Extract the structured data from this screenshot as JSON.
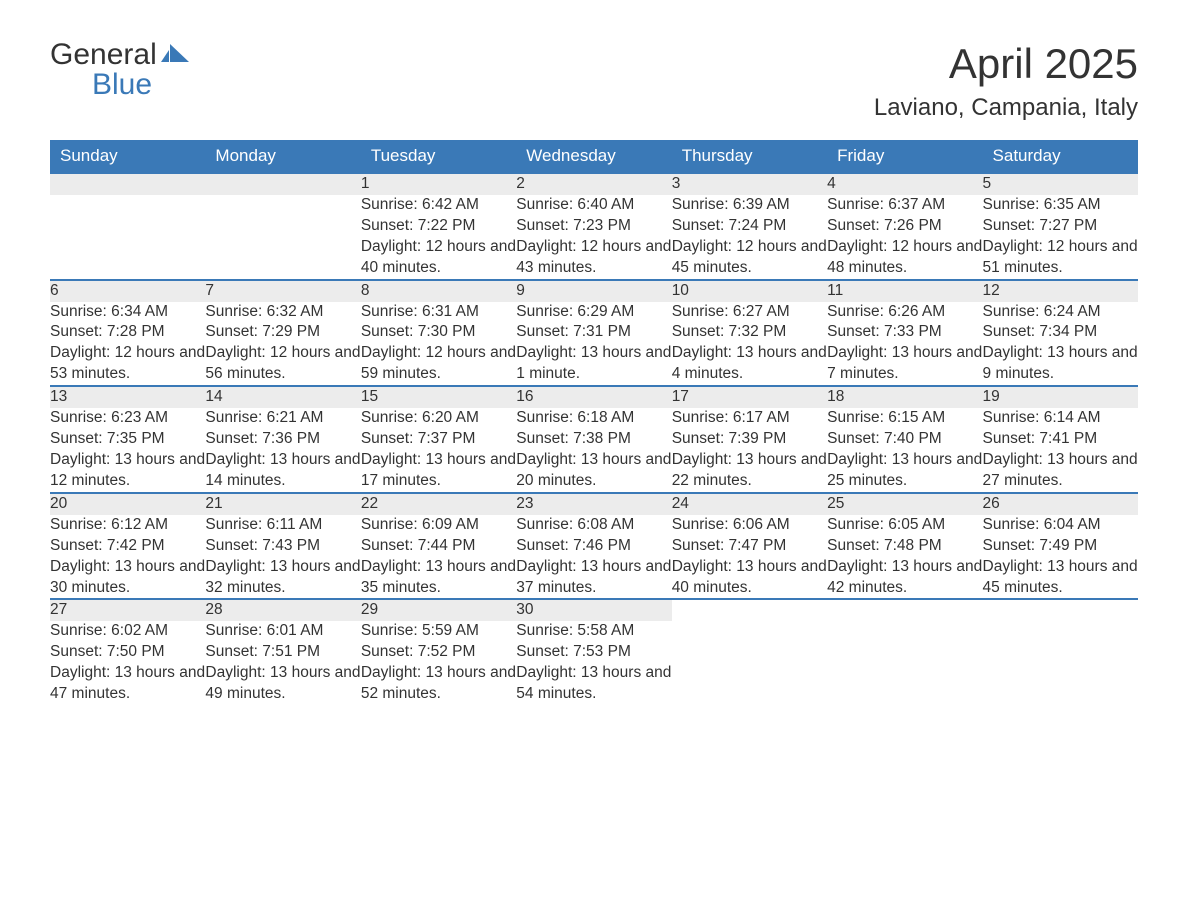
{
  "brand": {
    "word1": "General",
    "word2": "Blue",
    "accent_color": "#3a79b7"
  },
  "title": {
    "month": "April 2025",
    "location": "Laviano, Campania, Italy"
  },
  "calendar": {
    "header_bg": "#3a79b7",
    "header_fg": "#ffffff",
    "daynum_bg": "#ececec",
    "row_border": "#3a79b7",
    "text_color": "#333333",
    "days": [
      "Sunday",
      "Monday",
      "Tuesday",
      "Wednesday",
      "Thursday",
      "Friday",
      "Saturday"
    ],
    "weeks": [
      [
        null,
        null,
        {
          "n": "1",
          "sr": "Sunrise: 6:42 AM",
          "ss": "Sunset: 7:22 PM",
          "dl": "Daylight: 12 hours and 40 minutes."
        },
        {
          "n": "2",
          "sr": "Sunrise: 6:40 AM",
          "ss": "Sunset: 7:23 PM",
          "dl": "Daylight: 12 hours and 43 minutes."
        },
        {
          "n": "3",
          "sr": "Sunrise: 6:39 AM",
          "ss": "Sunset: 7:24 PM",
          "dl": "Daylight: 12 hours and 45 minutes."
        },
        {
          "n": "4",
          "sr": "Sunrise: 6:37 AM",
          "ss": "Sunset: 7:26 PM",
          "dl": "Daylight: 12 hours and 48 minutes."
        },
        {
          "n": "5",
          "sr": "Sunrise: 6:35 AM",
          "ss": "Sunset: 7:27 PM",
          "dl": "Daylight: 12 hours and 51 minutes."
        }
      ],
      [
        {
          "n": "6",
          "sr": "Sunrise: 6:34 AM",
          "ss": "Sunset: 7:28 PM",
          "dl": "Daylight: 12 hours and 53 minutes."
        },
        {
          "n": "7",
          "sr": "Sunrise: 6:32 AM",
          "ss": "Sunset: 7:29 PM",
          "dl": "Daylight: 12 hours and 56 minutes."
        },
        {
          "n": "8",
          "sr": "Sunrise: 6:31 AM",
          "ss": "Sunset: 7:30 PM",
          "dl": "Daylight: 12 hours and 59 minutes."
        },
        {
          "n": "9",
          "sr": "Sunrise: 6:29 AM",
          "ss": "Sunset: 7:31 PM",
          "dl": "Daylight: 13 hours and 1 minute."
        },
        {
          "n": "10",
          "sr": "Sunrise: 6:27 AM",
          "ss": "Sunset: 7:32 PM",
          "dl": "Daylight: 13 hours and 4 minutes."
        },
        {
          "n": "11",
          "sr": "Sunrise: 6:26 AM",
          "ss": "Sunset: 7:33 PM",
          "dl": "Daylight: 13 hours and 7 minutes."
        },
        {
          "n": "12",
          "sr": "Sunrise: 6:24 AM",
          "ss": "Sunset: 7:34 PM",
          "dl": "Daylight: 13 hours and 9 minutes."
        }
      ],
      [
        {
          "n": "13",
          "sr": "Sunrise: 6:23 AM",
          "ss": "Sunset: 7:35 PM",
          "dl": "Daylight: 13 hours and 12 minutes."
        },
        {
          "n": "14",
          "sr": "Sunrise: 6:21 AM",
          "ss": "Sunset: 7:36 PM",
          "dl": "Daylight: 13 hours and 14 minutes."
        },
        {
          "n": "15",
          "sr": "Sunrise: 6:20 AM",
          "ss": "Sunset: 7:37 PM",
          "dl": "Daylight: 13 hours and 17 minutes."
        },
        {
          "n": "16",
          "sr": "Sunrise: 6:18 AM",
          "ss": "Sunset: 7:38 PM",
          "dl": "Daylight: 13 hours and 20 minutes."
        },
        {
          "n": "17",
          "sr": "Sunrise: 6:17 AM",
          "ss": "Sunset: 7:39 PM",
          "dl": "Daylight: 13 hours and 22 minutes."
        },
        {
          "n": "18",
          "sr": "Sunrise: 6:15 AM",
          "ss": "Sunset: 7:40 PM",
          "dl": "Daylight: 13 hours and 25 minutes."
        },
        {
          "n": "19",
          "sr": "Sunrise: 6:14 AM",
          "ss": "Sunset: 7:41 PM",
          "dl": "Daylight: 13 hours and 27 minutes."
        }
      ],
      [
        {
          "n": "20",
          "sr": "Sunrise: 6:12 AM",
          "ss": "Sunset: 7:42 PM",
          "dl": "Daylight: 13 hours and 30 minutes."
        },
        {
          "n": "21",
          "sr": "Sunrise: 6:11 AM",
          "ss": "Sunset: 7:43 PM",
          "dl": "Daylight: 13 hours and 32 minutes."
        },
        {
          "n": "22",
          "sr": "Sunrise: 6:09 AM",
          "ss": "Sunset: 7:44 PM",
          "dl": "Daylight: 13 hours and 35 minutes."
        },
        {
          "n": "23",
          "sr": "Sunrise: 6:08 AM",
          "ss": "Sunset: 7:46 PM",
          "dl": "Daylight: 13 hours and 37 minutes."
        },
        {
          "n": "24",
          "sr": "Sunrise: 6:06 AM",
          "ss": "Sunset: 7:47 PM",
          "dl": "Daylight: 13 hours and 40 minutes."
        },
        {
          "n": "25",
          "sr": "Sunrise: 6:05 AM",
          "ss": "Sunset: 7:48 PM",
          "dl": "Daylight: 13 hours and 42 minutes."
        },
        {
          "n": "26",
          "sr": "Sunrise: 6:04 AM",
          "ss": "Sunset: 7:49 PM",
          "dl": "Daylight: 13 hours and 45 minutes."
        }
      ],
      [
        {
          "n": "27",
          "sr": "Sunrise: 6:02 AM",
          "ss": "Sunset: 7:50 PM",
          "dl": "Daylight: 13 hours and 47 minutes."
        },
        {
          "n": "28",
          "sr": "Sunrise: 6:01 AM",
          "ss": "Sunset: 7:51 PM",
          "dl": "Daylight: 13 hours and 49 minutes."
        },
        {
          "n": "29",
          "sr": "Sunrise: 5:59 AM",
          "ss": "Sunset: 7:52 PM",
          "dl": "Daylight: 13 hours and 52 minutes."
        },
        {
          "n": "30",
          "sr": "Sunrise: 5:58 AM",
          "ss": "Sunset: 7:53 PM",
          "dl": "Daylight: 13 hours and 54 minutes."
        },
        null,
        null,
        null
      ]
    ]
  }
}
